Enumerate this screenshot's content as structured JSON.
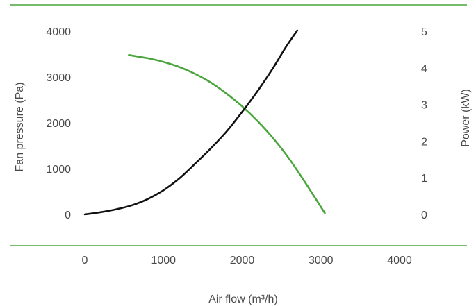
{
  "chart_data": {
    "type": "line",
    "xlabel": "Air flow (m³/h)",
    "ylabel_left": "Fan pressure (Pa)",
    "ylabel_right": "Power (kW)",
    "xlim": [
      0,
      4000
    ],
    "ylim_left": [
      0,
      4000
    ],
    "ylim_right": [
      0,
      5
    ],
    "x_ticks": [
      "0",
      "1000",
      "2000",
      "3000",
      "4000"
    ],
    "y_left_ticks": [
      "0",
      "1000",
      "2000",
      "3000",
      "4000"
    ],
    "y_right_ticks": [
      "0",
      "1",
      "2",
      "3",
      "4",
      "5"
    ],
    "grid": false,
    "colors": {
      "pressure": "#4aa63c",
      "power": "#111111",
      "frame": "#4aa63c",
      "text": "#4a4a4a"
    },
    "series": [
      {
        "axis": "left",
        "color": "#4aa63c",
        "points": [
          [
            560,
            3480
          ],
          [
            800,
            3410
          ],
          [
            1000,
            3330
          ],
          [
            1200,
            3220
          ],
          [
            1400,
            3070
          ],
          [
            1600,
            2880
          ],
          [
            1800,
            2640
          ],
          [
            2000,
            2360
          ],
          [
            2200,
            2030
          ],
          [
            2400,
            1650
          ],
          [
            2600,
            1210
          ],
          [
            2800,
            700
          ],
          [
            3050,
            30
          ]
        ]
      },
      {
        "axis": "right",
        "color": "#111111",
        "points": [
          [
            0,
            0
          ],
          [
            200,
            0.06
          ],
          [
            400,
            0.14
          ],
          [
            600,
            0.25
          ],
          [
            800,
            0.42
          ],
          [
            1000,
            0.66
          ],
          [
            1200,
            0.98
          ],
          [
            1400,
            1.38
          ],
          [
            1600,
            1.8
          ],
          [
            1800,
            2.26
          ],
          [
            2000,
            2.8
          ],
          [
            2200,
            3.38
          ],
          [
            2400,
            4.02
          ],
          [
            2550,
            4.55
          ],
          [
            2700,
            5.02
          ]
        ]
      }
    ]
  }
}
